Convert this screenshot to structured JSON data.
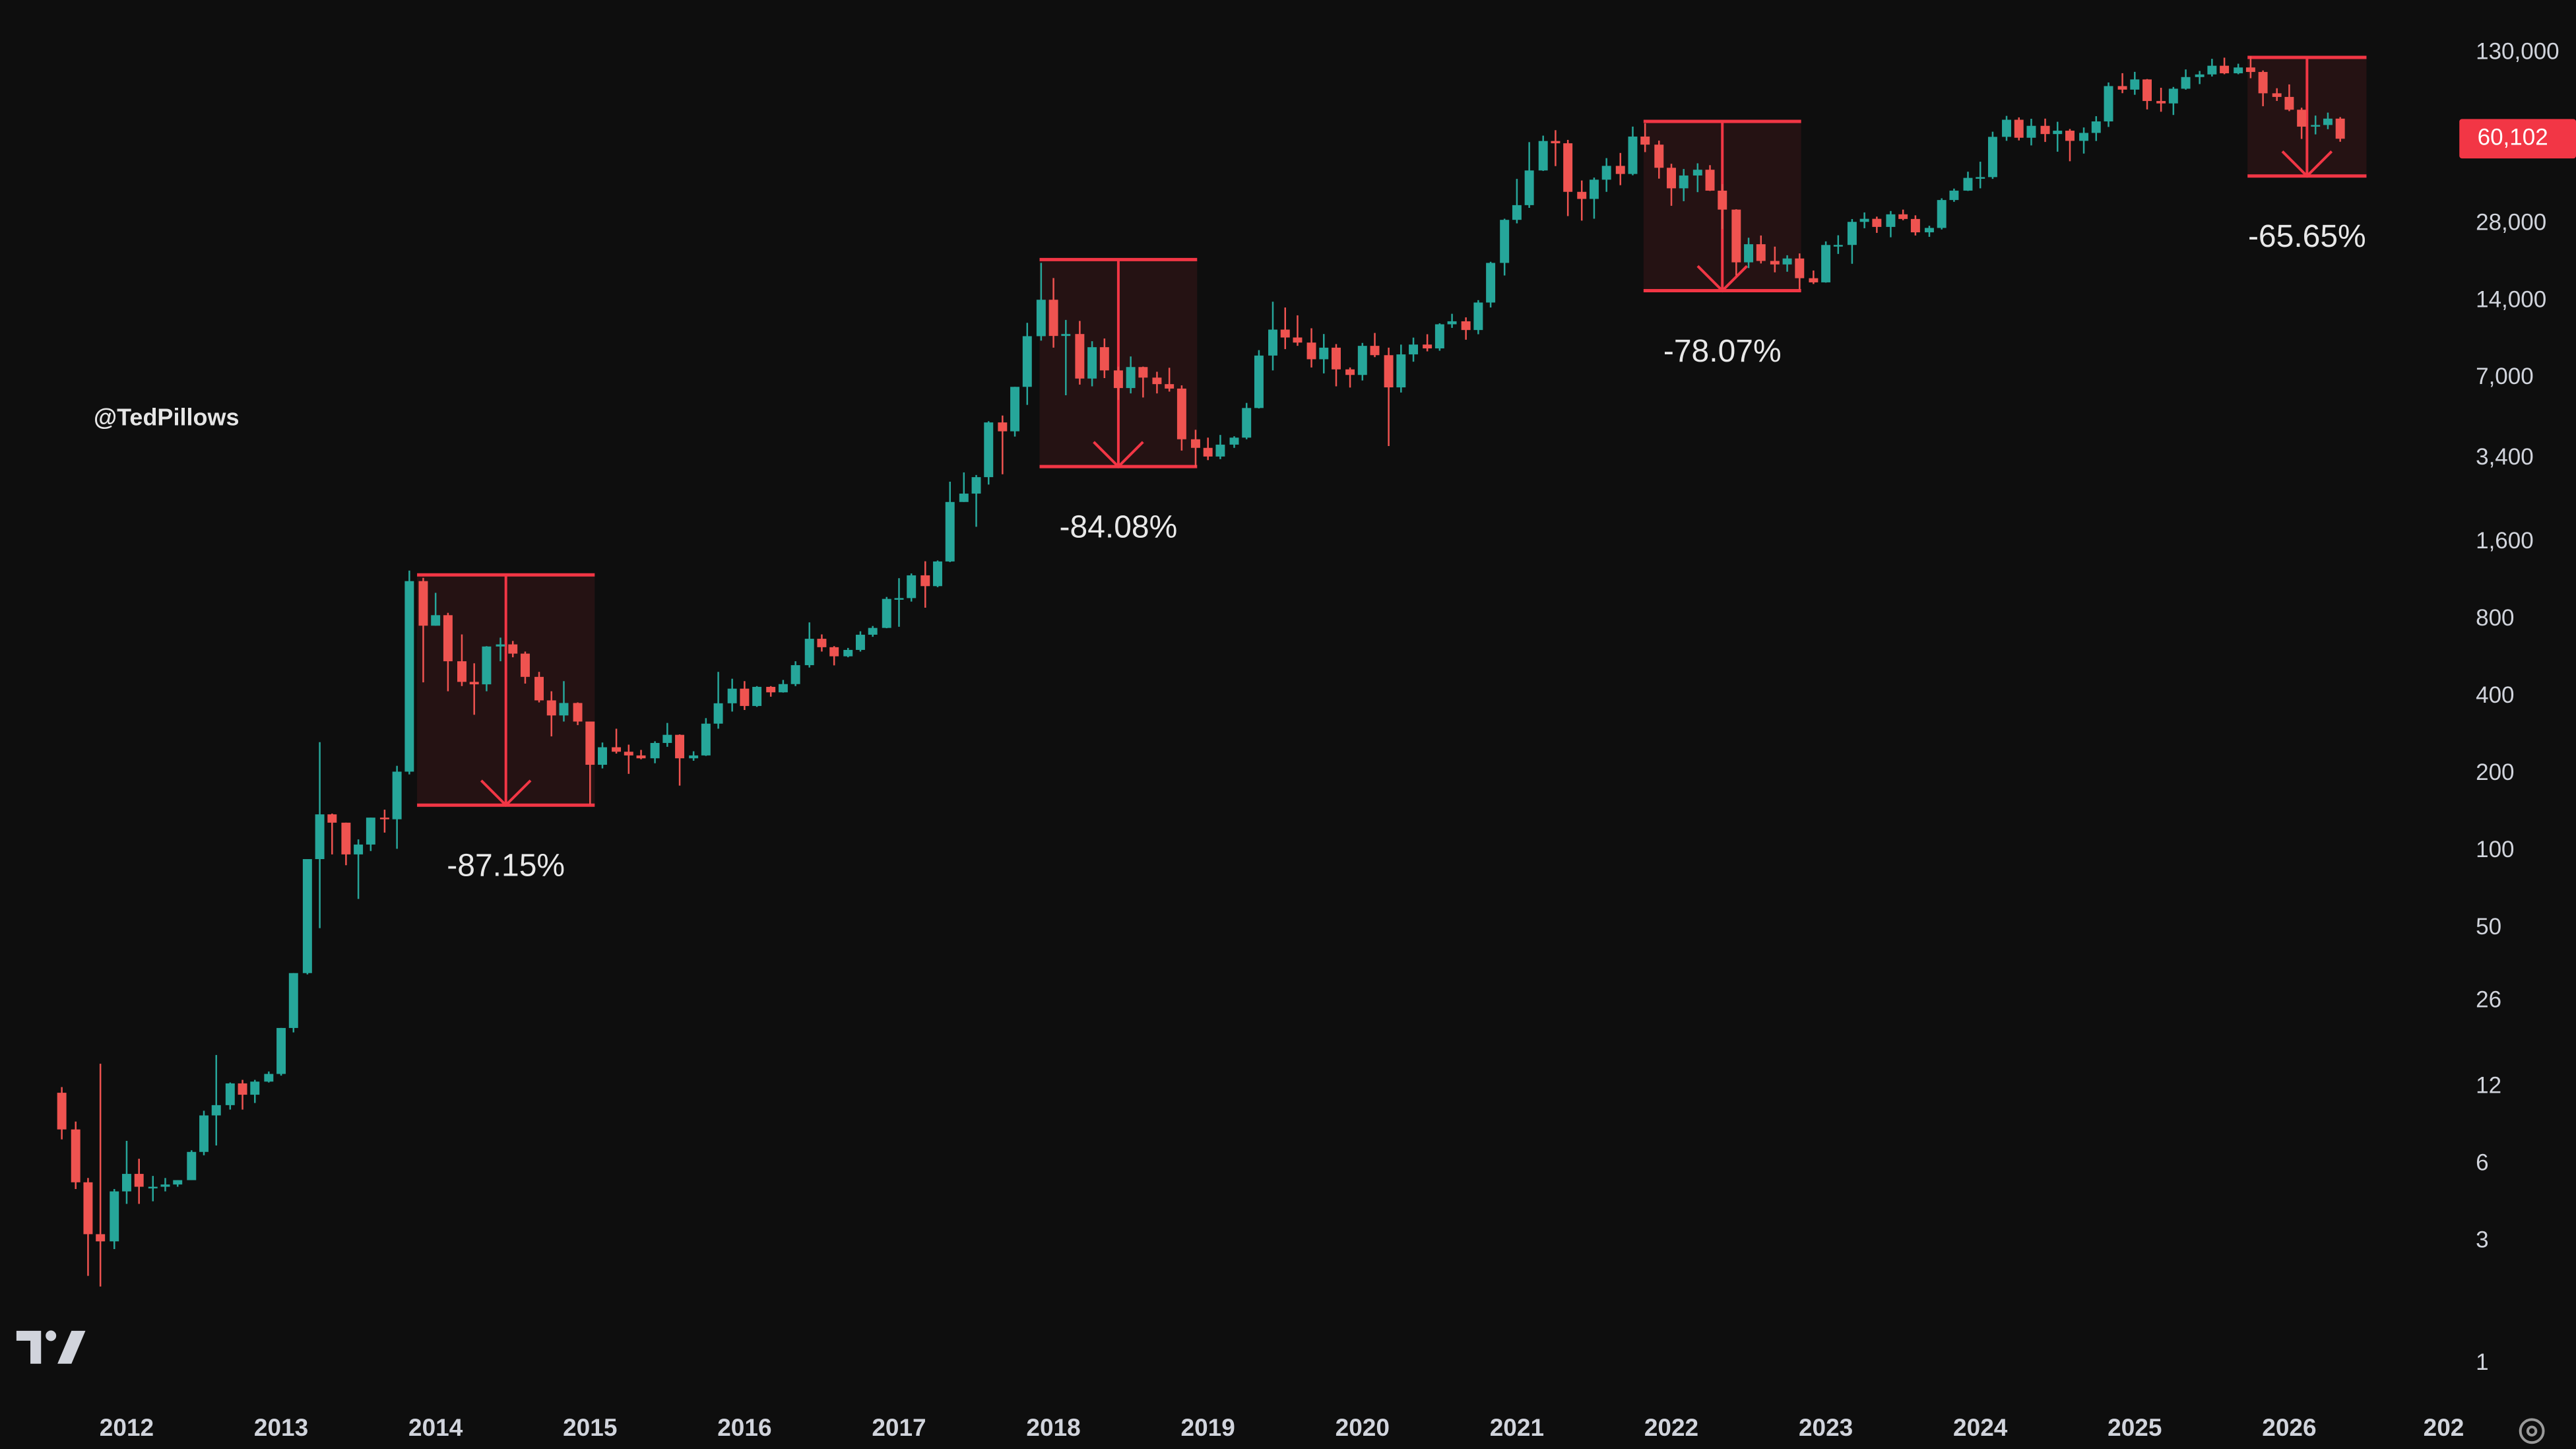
{
  "chart_data": {
    "type": "candlestick",
    "watermark": "@TedPillows",
    "log_y": true,
    "grid": false,
    "up_color": "#26a69a",
    "down_color": "#ef5350",
    "box_color": "#f23645",
    "xlim": [
      2011.18,
      2027.08
    ],
    "xticks": [
      2012,
      2013,
      2014,
      2015,
      2016,
      2017,
      2018,
      2019,
      2020,
      2021,
      2022,
      2023,
      2024,
      2025,
      2026,
      {
        "value": 2027,
        "label": "202"
      }
    ],
    "ylim": [
      0.745,
      209000
    ],
    "yticks": [
      {
        "value": 130000,
        "label": "130,000"
      },
      {
        "value": 28000,
        "label": "28,000"
      },
      {
        "value": 14000,
        "label": "14,000"
      },
      {
        "value": 7000,
        "label": "7,000"
      },
      {
        "value": 3400,
        "label": "3,400"
      },
      {
        "value": 1600,
        "label": "1,600"
      },
      800,
      400,
      200,
      100,
      50,
      26,
      12,
      6,
      3,
      1
    ],
    "price_label": {
      "value": 60102,
      "label": "60,102"
    },
    "x": [
      2011.58,
      2011.67,
      2011.75,
      2011.83,
      2011.92,
      2012,
      2012.08,
      2012.17,
      2012.25,
      2012.33,
      2012.42,
      2012.5,
      2012.58,
      2012.67,
      2012.75,
      2012.83,
      2012.92,
      2013,
      2013.08,
      2013.17,
      2013.25,
      2013.33,
      2013.42,
      2013.5,
      2013.58,
      2013.67,
      2013.75,
      2013.83,
      2013.92,
      2014,
      2014.08,
      2014.17,
      2014.25,
      2014.33,
      2014.42,
      2014.5,
      2014.58,
      2014.67,
      2014.75,
      2014.83,
      2014.92,
      2015,
      2015.08,
      2015.17,
      2015.25,
      2015.33,
      2015.42,
      2015.5,
      2015.58,
      2015.67,
      2015.75,
      2015.83,
      2015.92,
      2016,
      2016.08,
      2016.17,
      2016.25,
      2016.33,
      2016.42,
      2016.5,
      2016.58,
      2016.67,
      2016.75,
      2016.83,
      2016.92,
      2017,
      2017.08,
      2017.17,
      2017.25,
      2017.33,
      2017.42,
      2017.5,
      2017.58,
      2017.67,
      2017.75,
      2017.83,
      2017.92,
      2018,
      2018.08,
      2018.17,
      2018.25,
      2018.33,
      2018.42,
      2018.5,
      2018.58,
      2018.67,
      2018.75,
      2018.83,
      2018.92,
      2019,
      2019.08,
      2019.17,
      2019.25,
      2019.33,
      2019.42,
      2019.5,
      2019.58,
      2019.67,
      2019.75,
      2019.83,
      2019.92,
      2020,
      2020.08,
      2020.17,
      2020.25,
      2020.33,
      2020.42,
      2020.5,
      2020.58,
      2020.67,
      2020.75,
      2020.83,
      2020.92,
      2021,
      2021.08,
      2021.17,
      2021.25,
      2021.33,
      2021.42,
      2021.5,
      2021.58,
      2021.67,
      2021.75,
      2021.83,
      2021.92,
      2022,
      2022.08,
      2022.17,
      2022.25,
      2022.33,
      2022.42,
      2022.5,
      2022.58,
      2022.67,
      2022.75,
      2022.83,
      2022.92,
      2023,
      2023.08,
      2023.17,
      2023.25,
      2023.33,
      2023.42,
      2023.5,
      2023.58,
      2023.67,
      2023.75,
      2023.83,
      2023.92,
      2024,
      2024.08,
      2024.17,
      2024.25,
      2024.33,
      2024.42,
      2024.5,
      2024.58,
      2024.67,
      2024.75,
      2024.83,
      2024.92,
      2025,
      2025.08,
      2025.17,
      2025.25,
      2025.33,
      2025.42,
      2025.5,
      2025.58,
      2025.67,
      2025.75,
      2025.83,
      2025.92,
      2026,
      2026.08,
      2026.17,
      2026.25,
      2026.33
    ],
    "open": [
      11.4,
      8.2,
      5.1,
      3.2,
      3.0,
      4.7,
      5.5,
      4.9,
      4.9,
      5.0,
      5.2,
      6.7,
      9.3,
      10.2,
      12.4,
      11.2,
      12.6,
      13.5,
      20.4,
      33.4,
      93,
      139,
      129,
      97,
      106,
      135,
      133,
      204,
      1130,
      757,
      832,
      550,
      457,
      447,
      628,
      640,
      589,
      478,
      387,
      338,
      378,
      320,
      217,
      254,
      244,
      236,
      230,
      264,
      284,
      230,
      236,
      314,
      377,
      430,
      368,
      437,
      416,
      448,
      531,
      673,
      624,
      575,
      609,
      698,
      742,
      963,
      970,
      1190,
      1080,
      1348,
      2300,
      2480,
      2875,
      4700,
      4340,
      6470,
      10200,
      14150,
      10220,
      10400,
      6970,
      9240,
      7500,
      6400,
      7730,
      7030,
      6630,
      6370,
      4040,
      3740,
      3460,
      3850,
      4100,
      5350,
      8570,
      10820,
      10080,
      9630,
      8290,
      9200,
      7570,
      7200,
      9350,
      8600,
      6440,
      8660,
      9460,
      9140,
      11350,
      11660,
      10780,
      13800,
      19700,
      29000,
      33100,
      45200,
      58900,
      57700,
      37300,
      35000,
      41600,
      47100,
      43800,
      61300,
      57000,
      46300,
      38500,
      43200,
      45500,
      37700,
      31800,
      19800,
      23300,
      20050,
      19430,
      20500,
      17170,
      16540,
      23140,
      23150,
      28480,
      29270,
      27220,
      30480,
      29230,
      25930,
      26970,
      34660,
      37710,
      42280,
      42580,
      61130,
      71280,
      60640,
      67490,
      62680,
      64620,
      58970,
      63330,
      70220,
      96450,
      93430,
      102400,
      84350,
      82550,
      94200,
      104600,
      107100,
      115800,
      108200,
      114000,
      109500,
      90400,
      87500,
      78000,
      67000,
      68000,
      72000
    ],
    "high": [
      12,
      8.8,
      5.3,
      14.8,
      4.8,
      7.4,
      6.3,
      5.4,
      5.3,
      5.2,
      6.8,
      9.7,
      16,
      12.5,
      12.8,
      12.8,
      13.8,
      20.4,
      33.4,
      93,
      266,
      140,
      129,
      111,
      135,
      145,
      215,
      1242,
      1163,
      1017,
      850,
      700,
      540,
      630,
      680,
      660,
      600,
      500,
      420,
      460,
      380,
      320,
      265,
      300,
      260,
      248,
      268,
      316,
      285,
      245,
      330,
      500,
      470,
      460,
      440,
      440,
      465,
      550,
      780,
      700,
      630,
      620,
      720,
      755,
      980,
      1160,
      1210,
      1350,
      1360,
      2760,
      3000,
      2930,
      4750,
      5000,
      6470,
      11500,
      19700,
      17200,
      11800,
      11700,
      9750,
      9990,
      7760,
      8500,
      7760,
      7410,
      7680,
      6560,
      4400,
      4100,
      4200,
      4150,
      5600,
      9000,
      13900,
      13200,
      12300,
      10950,
      10400,
      9500,
      7700,
      9600,
      10500,
      9200,
      9460,
      10070,
      10380,
      11450,
      12470,
      12080,
      14100,
      19900,
      29300,
      41900,
      58300,
      61800,
      64900,
      59500,
      41300,
      42400,
      50500,
      52900,
      67000,
      69000,
      59100,
      48000,
      45800,
      48200,
      47400,
      40000,
      31900,
      24700,
      25200,
      22800,
      21100,
      21450,
      18400,
      23900,
      25250,
      29200,
      31000,
      29850,
      31400,
      31800,
      30200,
      27500,
      35200,
      38400,
      44700,
      48900,
      64000,
      73800,
      72800,
      71900,
      72000,
      70000,
      65600,
      66500,
      73600,
      99600,
      108300,
      109600,
      102800,
      95000,
      95700,
      112000,
      110500,
      123200,
      124500,
      117900,
      126200,
      111000,
      94600,
      97900,
      79400,
      74000,
      76000,
      73000
    ],
    "low": [
      7.5,
      4.8,
      2.2,
      2.0,
      2.8,
      4.2,
      4.2,
      4.3,
      4.7,
      4.9,
      5.2,
      6.5,
      7.1,
      9.8,
      9.8,
      10.4,
      12.5,
      13.3,
      19.6,
      33,
      50,
      97,
      88,
      65,
      100,
      118,
      102,
      199,
      455,
      757,
      420,
      440,
      340,
      420,
      550,
      570,
      450,
      380,
      280,
      320,
      310,
      152,
      210,
      240,
      200,
      228,
      220,
      255,
      180,
      225,
      235,
      300,
      350,
      355,
      365,
      400,
      415,
      440,
      520,
      600,
      530,
      570,
      600,
      685,
      740,
      750,
      940,
      890,
      1070,
      1340,
      2300,
      1840,
      2690,
      2950,
      4140,
      5500,
      9800,
      9200,
      6000,
      6600,
      6500,
      7000,
      5750,
      6100,
      5880,
      6100,
      6200,
      3650,
      3150,
      3350,
      3380,
      3740,
      4040,
      5330,
      7500,
      9080,
      9350,
      7700,
      7300,
      6500,
      6430,
      6850,
      8450,
      3800,
      6150,
      8110,
      8900,
      8950,
      10990,
      9880,
      10380,
      13200,
      17600,
      28100,
      32300,
      45000,
      47000,
      30000,
      28800,
      29300,
      37300,
      39600,
      43300,
      53300,
      42000,
      32900,
      34300,
      37200,
      37600,
      26700,
      17600,
      18800,
      19600,
      18100,
      18200,
      15500,
      16300,
      16500,
      21350,
      19550,
      26900,
      25800,
      24800,
      28900,
      25200,
      24900,
      26600,
      34100,
      37600,
      38500,
      41900,
      59000,
      59200,
      56600,
      58400,
      53500,
      49100,
      52600,
      58900,
      66800,
      90500,
      89200,
      78200,
      76600,
      74400,
      93400,
      98200,
      105100,
      107300,
      107300,
      103500,
      80500,
      84400,
      77000,
      60000,
      62500,
      65500,
      58500
    ],
    "close": [
      8.2,
      5.1,
      3.2,
      3.0,
      4.7,
      5.5,
      4.9,
      4.9,
      5.0,
      5.2,
      6.7,
      9.3,
      10.2,
      12.4,
      11.2,
      12.6,
      13.5,
      20.4,
      33.4,
      93,
      139,
      129,
      97,
      106,
      135,
      133,
      204,
      1130,
      757,
      832,
      550,
      457,
      447,
      628,
      640,
      589,
      478,
      387,
      338,
      378,
      320,
      217,
      254,
      244,
      236,
      230,
      264,
      284,
      230,
      236,
      314,
      377,
      430,
      368,
      437,
      416,
      448,
      531,
      673,
      624,
      575,
      609,
      698,
      742,
      963,
      970,
      1190,
      1080,
      1348,
      2300,
      2480,
      2875,
      4700,
      4340,
      6470,
      10200,
      14150,
      10220,
      10400,
      6970,
      9240,
      7500,
      6400,
      7730,
      7030,
      6630,
      6370,
      4040,
      3740,
      3460,
      3850,
      4100,
      5350,
      8570,
      10820,
      10080,
      9630,
      8290,
      9200,
      7570,
      7200,
      9350,
      8600,
      6440,
      8660,
      9460,
      9140,
      11350,
      11660,
      10780,
      13800,
      19700,
      29000,
      33100,
      45200,
      58900,
      57700,
      37300,
      35000,
      41600,
      47100,
      43800,
      61300,
      57000,
      46300,
      38500,
      43200,
      45500,
      37700,
      31800,
      19800,
      23300,
      20050,
      19430,
      20500,
      17170,
      16540,
      23140,
      23150,
      28480,
      29270,
      27220,
      30480,
      29230,
      25930,
      26970,
      34660,
      37710,
      42280,
      42580,
      61130,
      71280,
      60640,
      67490,
      62680,
      64620,
      58970,
      63330,
      70220,
      96450,
      93430,
      102400,
      84350,
      82550,
      94200,
      104600,
      107100,
      115800,
      108200,
      114000,
      109500,
      90400,
      87500,
      78000,
      67000,
      68000,
      72000,
      60102
    ],
    "annotations": [
      {
        "label": "-87.15%",
        "x": [
          2013.88,
          2015.03
        ],
        "y": [
          1195,
          151
        ]
      },
      {
        "label": "-84.08%",
        "x": [
          2017.91,
          2018.93
        ],
        "y": [
          20300,
          3160
        ]
      },
      {
        "label": "-78.07%",
        "x": [
          2021.82,
          2022.84
        ],
        "y": [
          70200,
          15350
        ]
      },
      {
        "label": "-65.65%",
        "x": [
          2025.73,
          2026.5
        ],
        "y": [
          124800,
          43000
        ]
      }
    ]
  }
}
